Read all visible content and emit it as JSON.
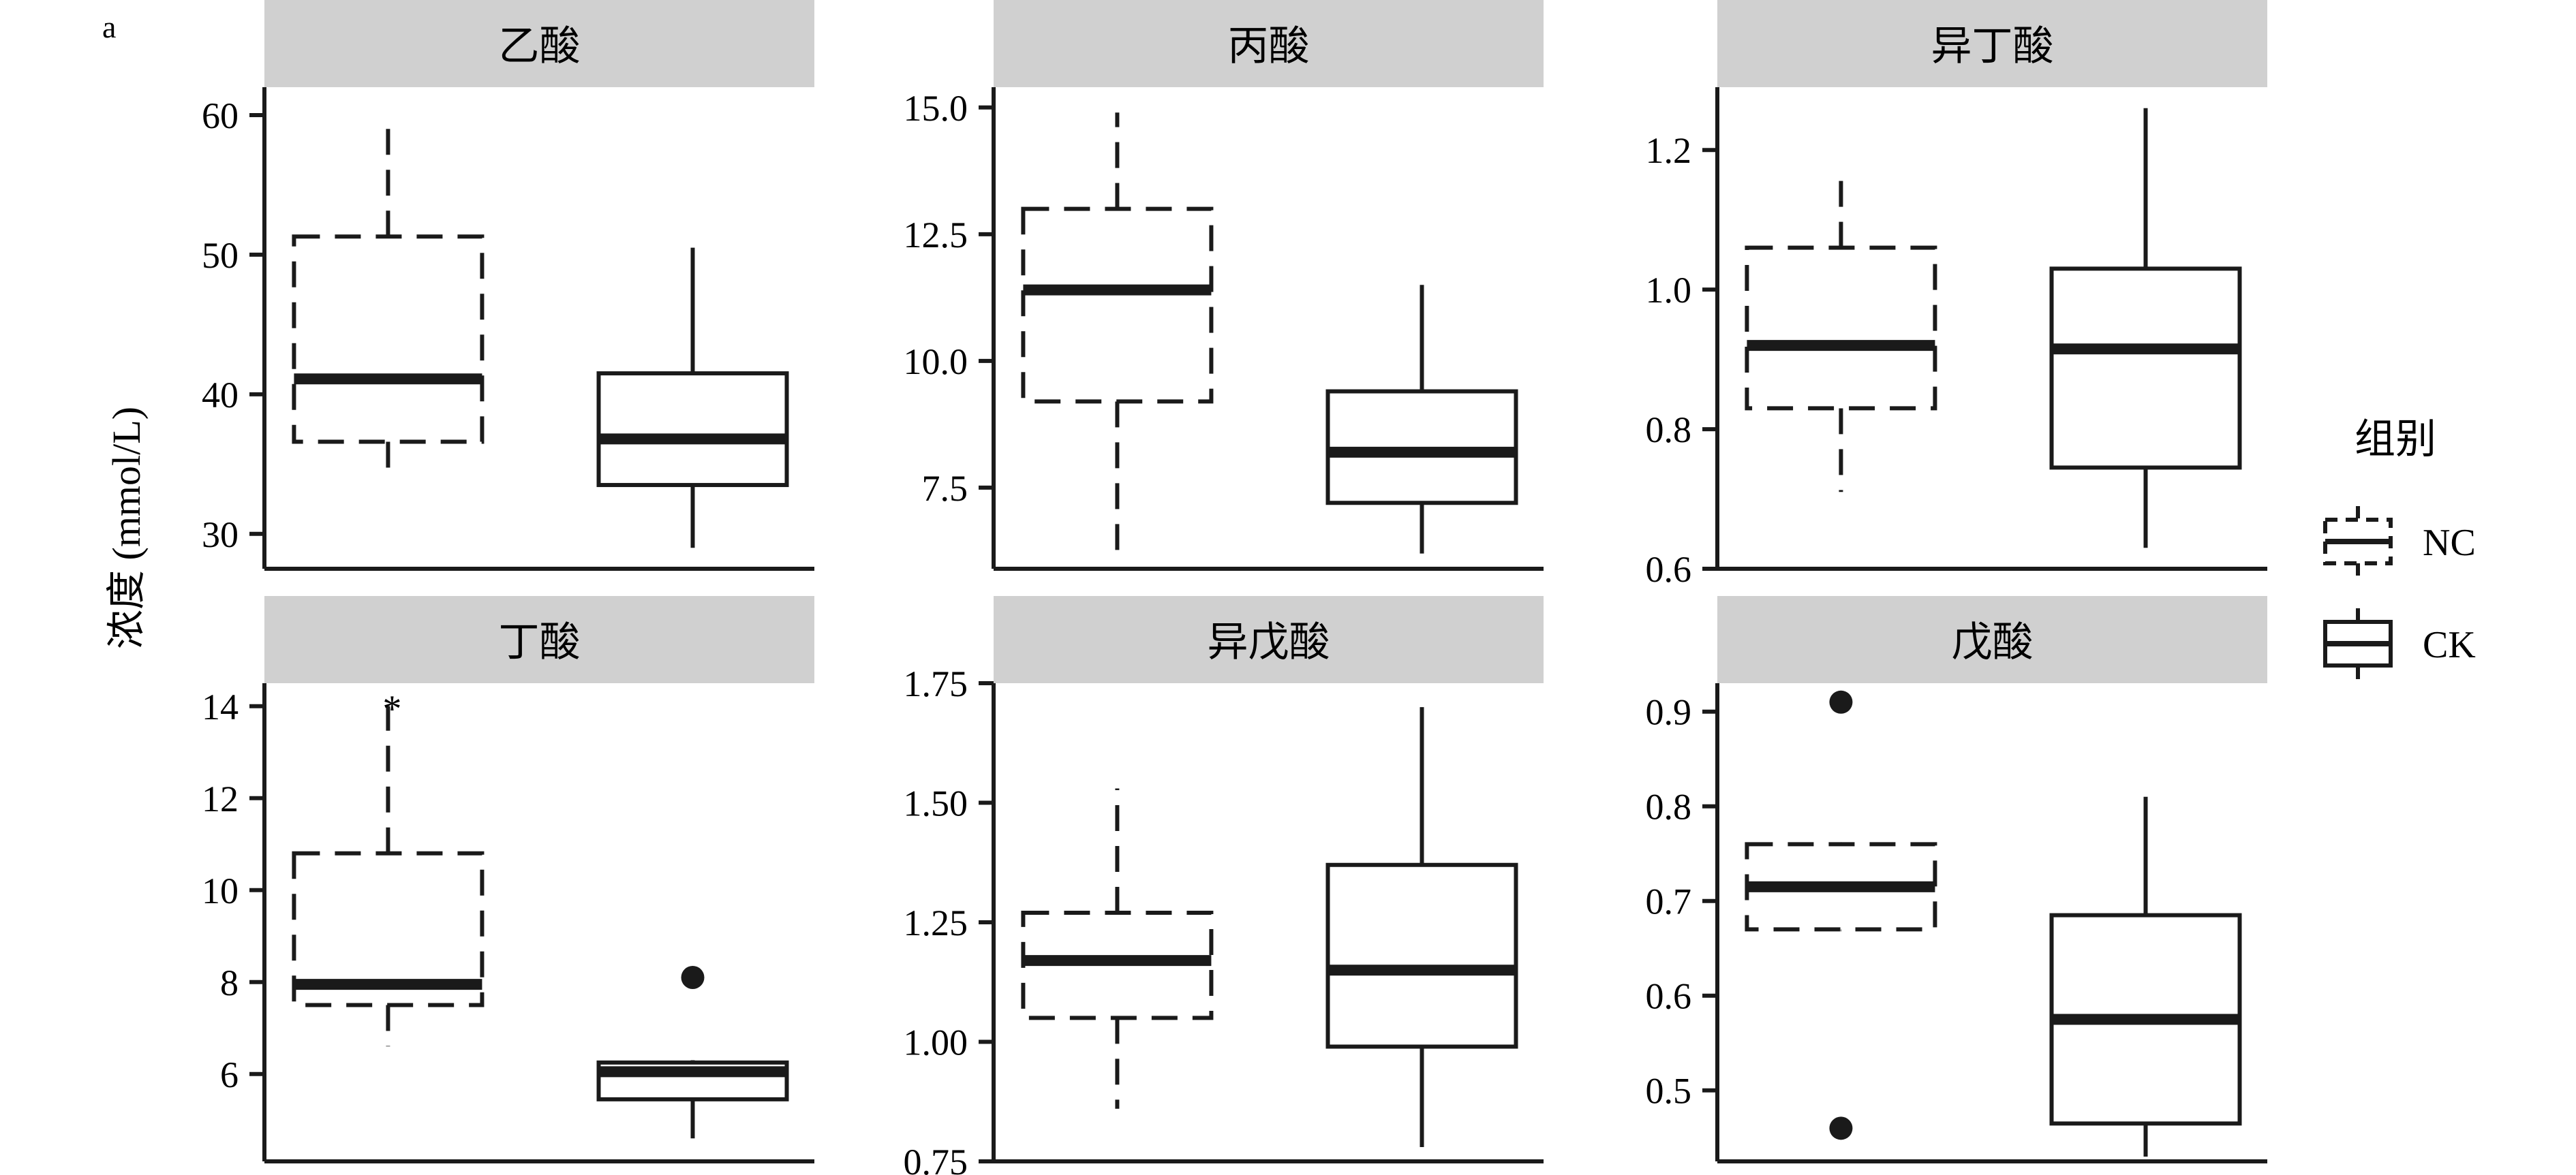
{
  "figure": {
    "panel_label": "a",
    "ylabel": "浓度 (mmol/L)",
    "legend": {
      "title": "组别",
      "entries": [
        {
          "group": "NC",
          "label": "NC",
          "linestyle": "dashed"
        },
        {
          "group": "CK",
          "label": "CK",
          "linestyle": "solid"
        }
      ]
    }
  },
  "chart_data": [
    {
      "type": "boxplot",
      "title": "乙酸",
      "ylim": [
        27.5,
        62
      ],
      "yticks": [
        30,
        40,
        50,
        60
      ],
      "tick_labels": [
        "30",
        "40",
        "50",
        "60"
      ],
      "groups": [
        {
          "name": "NC",
          "whisker_low": 34,
          "q1": 36.6,
          "median": 41.1,
          "q3": 51.3,
          "whisker_high": 60,
          "outliers": [],
          "markers": []
        },
        {
          "name": "CK",
          "whisker_low": 29,
          "q1": 33.5,
          "median": 36.8,
          "q3": 41.5,
          "whisker_high": 50.5,
          "outliers": [],
          "markers": []
        }
      ]
    },
    {
      "type": "boxplot",
      "title": "丙酸",
      "ylim": [
        5.9,
        15.4
      ],
      "yticks": [
        7.5,
        10.0,
        12.5,
        15.0
      ],
      "tick_labels": [
        "7.5",
        "10.0",
        "12.5",
        "15.0"
      ],
      "groups": [
        {
          "name": "NC",
          "whisker_low": 6.1,
          "q1": 9.2,
          "median": 11.4,
          "q3": 13.0,
          "whisker_high": 14.9,
          "outliers": [],
          "markers": []
        },
        {
          "name": "CK",
          "whisker_low": 6.2,
          "q1": 7.2,
          "median": 8.2,
          "q3": 9.4,
          "whisker_high": 11.5,
          "outliers": [],
          "markers": []
        }
      ]
    },
    {
      "type": "boxplot",
      "title": "异丁酸",
      "ylim": [
        0.6,
        1.29
      ],
      "yticks": [
        0.6,
        0.8,
        1.0,
        1.2
      ],
      "tick_labels": [
        "0.6",
        "0.8",
        "1.0",
        "1.2"
      ],
      "groups": [
        {
          "name": "NC",
          "whisker_low": 0.71,
          "q1": 0.83,
          "median": 0.92,
          "q3": 1.06,
          "whisker_high": 1.16,
          "outliers": [],
          "markers": []
        },
        {
          "name": "CK",
          "whisker_low": 0.63,
          "q1": 0.745,
          "median": 0.915,
          "q3": 1.03,
          "whisker_high": 1.26,
          "outliers": [],
          "markers": []
        }
      ]
    },
    {
      "type": "boxplot",
      "title": "丁酸",
      "ylim": [
        4.1,
        14.5
      ],
      "yticks": [
        6,
        8,
        10,
        12,
        14
      ],
      "tick_labels": [
        "6",
        "8",
        "10",
        "12",
        "14"
      ],
      "groups": [
        {
          "name": "NC",
          "whisker_low": 6.6,
          "q1": 7.5,
          "median": 7.95,
          "q3": 10.8,
          "whisker_high": 14.0,
          "outliers": [],
          "markers": [
            {
              "y": 14.0,
              "text": "*"
            }
          ]
        },
        {
          "name": "CK",
          "whisker_low": 4.6,
          "q1": 5.45,
          "median": 6.05,
          "q3": 6.25,
          "whisker_high": 6.3,
          "outliers": [
            8.1
          ],
          "markers": []
        }
      ]
    },
    {
      "type": "boxplot",
      "title": "异戊酸",
      "ylim": [
        0.75,
        1.75
      ],
      "yticks": [
        0.75,
        1.0,
        1.25,
        1.5,
        1.75
      ],
      "tick_labels": [
        "0.75",
        "1.00",
        "1.25",
        "1.50",
        "1.75"
      ],
      "groups": [
        {
          "name": "NC",
          "whisker_low": 0.86,
          "q1": 1.05,
          "median": 1.17,
          "q3": 1.27,
          "whisker_high": 1.53,
          "outliers": [],
          "markers": []
        },
        {
          "name": "CK",
          "whisker_low": 0.78,
          "q1": 0.99,
          "median": 1.15,
          "q3": 1.37,
          "whisker_high": 1.7,
          "outliers": [],
          "markers": []
        }
      ]
    },
    {
      "type": "boxplot",
      "title": "戊酸",
      "ylim": [
        0.425,
        0.93
      ],
      "yticks": [
        0.5,
        0.6,
        0.7,
        0.8,
        0.9
      ],
      "tick_labels": [
        "0.5",
        "0.6",
        "0.7",
        "0.8",
        "0.9"
      ],
      "groups": [
        {
          "name": "NC",
          "whisker_low": 0.67,
          "q1": 0.67,
          "median": 0.715,
          "q3": 0.76,
          "whisker_high": 0.76,
          "outliers": [
            0.91,
            0.46
          ],
          "markers": []
        },
        {
          "name": "CK",
          "whisker_low": 0.43,
          "q1": 0.465,
          "median": 0.575,
          "q3": 0.685,
          "whisker_high": 0.81,
          "outliers": [],
          "markers": []
        }
      ]
    }
  ]
}
